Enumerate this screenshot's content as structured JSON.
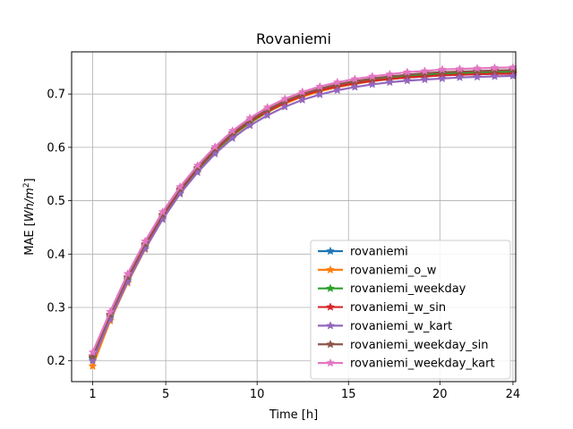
{
  "chart_data": {
    "type": "line",
    "title": "Rovaniemi",
    "xlabel": "Time [h]",
    "ylabel_prefix": "MAE [",
    "ylabel_unit_base": "Wh/m",
    "ylabel_unit_exp": "2",
    "ylabel_suffix": "]",
    "xlim": [
      -0.15,
      24.15
    ],
    "ylim": [
      0.161,
      0.779
    ],
    "x_ticks": [
      1,
      5,
      10,
      15,
      20,
      24
    ],
    "y_ticks": [
      0.2,
      0.3,
      0.4,
      0.5,
      0.6,
      0.7
    ],
    "y_tick_labels": [
      "0.2",
      "0.3",
      "0.4",
      "0.5",
      "0.6",
      "0.7"
    ],
    "grid": true,
    "legend_position": "lower-right",
    "marker": "star",
    "x": [
      1,
      1.957,
      2.913,
      3.87,
      4.826,
      5.783,
      6.739,
      7.696,
      8.652,
      9.609,
      10.565,
      11.522,
      12.478,
      13.435,
      14.391,
      15.348,
      16.304,
      17.261,
      18.217,
      19.174,
      20.13,
      21.087,
      22.043,
      23,
      24
    ],
    "series": [
      {
        "name": "rovaniemi",
        "color": "#1f77b4",
        "values": [
          0.203,
          0.281,
          0.351,
          0.413,
          0.468,
          0.516,
          0.556,
          0.592,
          0.622,
          0.646,
          0.666,
          0.683,
          0.696,
          0.706,
          0.713,
          0.719,
          0.724,
          0.728,
          0.731,
          0.733,
          0.735,
          0.736,
          0.737,
          0.738,
          0.738
        ]
      },
      {
        "name": "rovaniemi_o_w",
        "color": "#ff7f0e",
        "values": [
          0.19,
          0.275,
          0.346,
          0.409,
          0.466,
          0.515,
          0.556,
          0.592,
          0.622,
          0.646,
          0.666,
          0.682,
          0.695,
          0.705,
          0.713,
          0.719,
          0.724,
          0.728,
          0.731,
          0.734,
          0.736,
          0.737,
          0.738,
          0.739,
          0.74
        ]
      },
      {
        "name": "rovaniemi_weekday",
        "color": "#2ca02c",
        "values": [
          0.205,
          0.283,
          0.353,
          0.415,
          0.47,
          0.518,
          0.558,
          0.593,
          0.623,
          0.647,
          0.667,
          0.684,
          0.697,
          0.707,
          0.715,
          0.721,
          0.726,
          0.73,
          0.733,
          0.736,
          0.738,
          0.739,
          0.74,
          0.741,
          0.742
        ]
      },
      {
        "name": "rovaniemi_w_sin",
        "color": "#d62728",
        "values": [
          0.207,
          0.285,
          0.355,
          0.417,
          0.472,
          0.52,
          0.56,
          0.595,
          0.625,
          0.649,
          0.668,
          0.684,
          0.697,
          0.707,
          0.714,
          0.72,
          0.725,
          0.728,
          0.731,
          0.733,
          0.735,
          0.736,
          0.737,
          0.738,
          0.738
        ]
      },
      {
        "name": "rovaniemi_w_kart",
        "color": "#9467bd",
        "values": [
          0.2,
          0.278,
          0.348,
          0.41,
          0.465,
          0.513,
          0.553,
          0.588,
          0.617,
          0.641,
          0.66,
          0.676,
          0.689,
          0.699,
          0.707,
          0.713,
          0.718,
          0.722,
          0.725,
          0.727,
          0.729,
          0.731,
          0.732,
          0.733,
          0.734
        ]
      },
      {
        "name": "rovaniemi_weekday_sin",
        "color": "#8c564b",
        "values": [
          0.209,
          0.287,
          0.357,
          0.419,
          0.474,
          0.522,
          0.562,
          0.597,
          0.627,
          0.651,
          0.671,
          0.687,
          0.7,
          0.71,
          0.718,
          0.724,
          0.729,
          0.733,
          0.736,
          0.739,
          0.741,
          0.742,
          0.743,
          0.744,
          0.745
        ]
      },
      {
        "name": "rovaniemi_weekday_kart",
        "color": "#e377c2",
        "values": [
          0.216,
          0.292,
          0.363,
          0.424,
          0.479,
          0.526,
          0.566,
          0.601,
          0.631,
          0.655,
          0.675,
          0.691,
          0.704,
          0.714,
          0.722,
          0.728,
          0.733,
          0.737,
          0.741,
          0.743,
          0.746,
          0.747,
          0.748,
          0.749,
          0.75
        ]
      }
    ]
  }
}
